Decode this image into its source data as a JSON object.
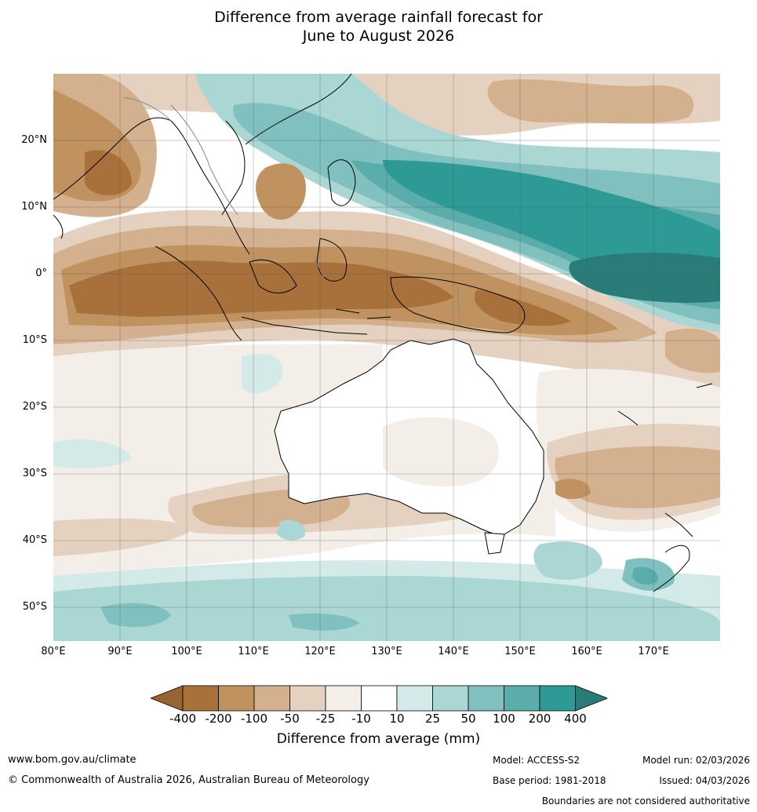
{
  "title_line1": "Difference from average rainfall forecast for",
  "title_line2": "June to August 2026",
  "map": {
    "lon_range": [
      80,
      180
    ],
    "lat_range": [
      -55,
      30
    ],
    "lat_labels": [
      {
        "lat": 20,
        "text": "20°N"
      },
      {
        "lat": 10,
        "text": "10°N"
      },
      {
        "lat": 0,
        "text": "0°"
      },
      {
        "lat": -10,
        "text": "10°S"
      },
      {
        "lat": -20,
        "text": "20°S"
      },
      {
        "lat": -30,
        "text": "30°S"
      },
      {
        "lat": -40,
        "text": "40°S"
      },
      {
        "lat": -50,
        "text": "50°S"
      }
    ],
    "lon_labels": [
      {
        "lon": 80,
        "text": "80°E"
      },
      {
        "lon": 90,
        "text": "90°E"
      },
      {
        "lon": 100,
        "text": "100°E"
      },
      {
        "lon": 110,
        "text": "110°E"
      },
      {
        "lon": 120,
        "text": "120°E"
      },
      {
        "lon": 130,
        "text": "130°E"
      },
      {
        "lon": 140,
        "text": "140°E"
      },
      {
        "lon": 150,
        "text": "150°E"
      },
      {
        "lon": 160,
        "text": "160°E"
      },
      {
        "lon": 170,
        "text": "170°E"
      }
    ]
  },
  "legend": {
    "ticks": [
      "-400",
      "-200",
      "-100",
      "-50",
      "-25",
      "-10",
      "10",
      "25",
      "50",
      "100",
      "200",
      "400"
    ],
    "colors": [
      "#a8703a",
      "#c0925f",
      "#d3b08e",
      "#e5d1bf",
      "#f3eee8",
      "#ffffff",
      "#d4eae8",
      "#aad6d4",
      "#80c1bf",
      "#5aadaa",
      "#2e9a96"
    ],
    "extend_low_color": "#9a6332",
    "extend_high_color": "#2a7c79",
    "label": "Difference from average (mm)"
  },
  "footer": {
    "website": "www.bom.gov.au/climate",
    "copyright": "© Commonwealth of Australia 2026, Australian Bureau of Meteorology",
    "model": "Model: ACCESS-S2",
    "base_period": "Base period: 1981-2018",
    "model_run": "Model run: 02/03/2026",
    "issued": "Issued: 04/03/2026",
    "boundaries": "Boundaries are not considered authoritative"
  }
}
